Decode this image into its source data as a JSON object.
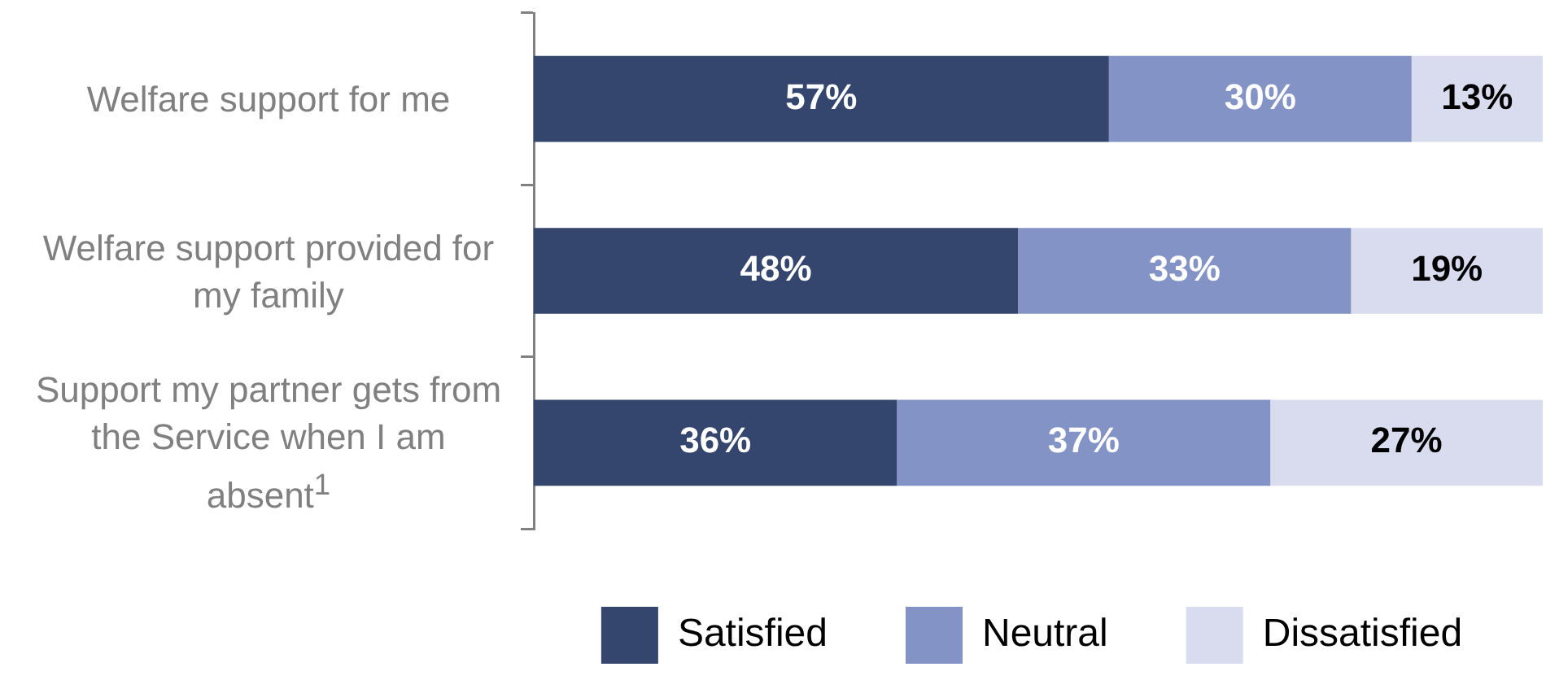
{
  "chart_data": {
    "type": "bar",
    "orientation": "horizontal",
    "stacked": true,
    "tick_labels": "y",
    "legend": "bottom",
    "categories": [
      "Welfare support for me",
      "Welfare support provided for my family",
      "Support my partner gets from the Service when I am absent$^{1}$"
    ],
    "series": [
      {
        "name": "Satisfied",
        "color": "#34466e",
        "values": [
          57,
          48,
          36
        ],
        "value_labels": [
          "57%",
          "48%",
          "36%"
        ]
      },
      {
        "name": "Neutral",
        "color": "#8493c6",
        "values": [
          30,
          33,
          37
        ],
        "value_labels": [
          "30%",
          "33%",
          "37%"
        ]
      },
      {
        "name": "Dissatisfied",
        "color": "#d9dcee",
        "values": [
          13,
          19,
          27
        ],
        "value_labels": [
          "13%",
          "19%",
          "27%"
        ]
      }
    ]
  }
}
